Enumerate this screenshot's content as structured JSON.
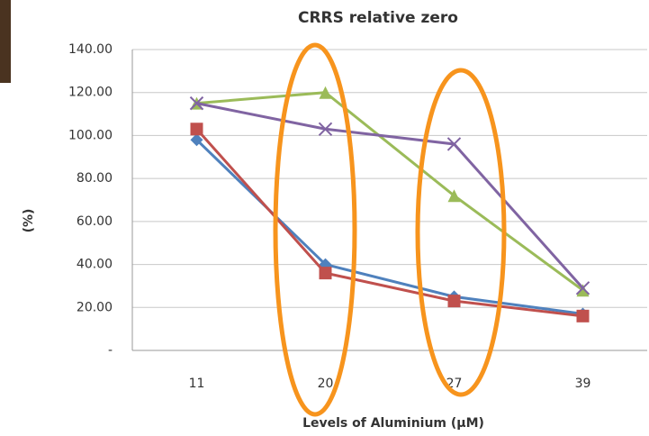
{
  "chart_data": {
    "type": "line",
    "title": "CRRS relative zero",
    "y_label": "(%)",
    "x_label": "Levels of Aluminium (µM)",
    "categories": [
      "11",
      "20",
      "27",
      "39"
    ],
    "series": [
      {
        "color": "#4f81bd",
        "marker": "diamond",
        "values": [
          98,
          40,
          25,
          17
        ]
      },
      {
        "color": "#c0504d",
        "marker": "square",
        "values": [
          103,
          36,
          23,
          16
        ]
      },
      {
        "color": "#9bbb59",
        "marker": "triangle",
        "values": [
          115,
          120,
          72,
          28
        ]
      },
      {
        "color": "#8064a2",
        "marker": "x",
        "values": [
          115,
          103,
          96,
          29
        ]
      }
    ],
    "ylim": [
      0,
      140
    ],
    "yticks": [
      {
        "value": 0,
        "label": "-"
      },
      {
        "value": 20,
        "label": "20.00"
      },
      {
        "value": 40,
        "label": "40.00"
      },
      {
        "value": 60,
        "label": "60.00"
      },
      {
        "value": 80,
        "label": "80.00"
      },
      {
        "value": 100,
        "label": "100.00"
      },
      {
        "value": 120,
        "label": "120.00"
      },
      {
        "value": 140,
        "label": "140.00"
      }
    ],
    "grid": true
  }
}
